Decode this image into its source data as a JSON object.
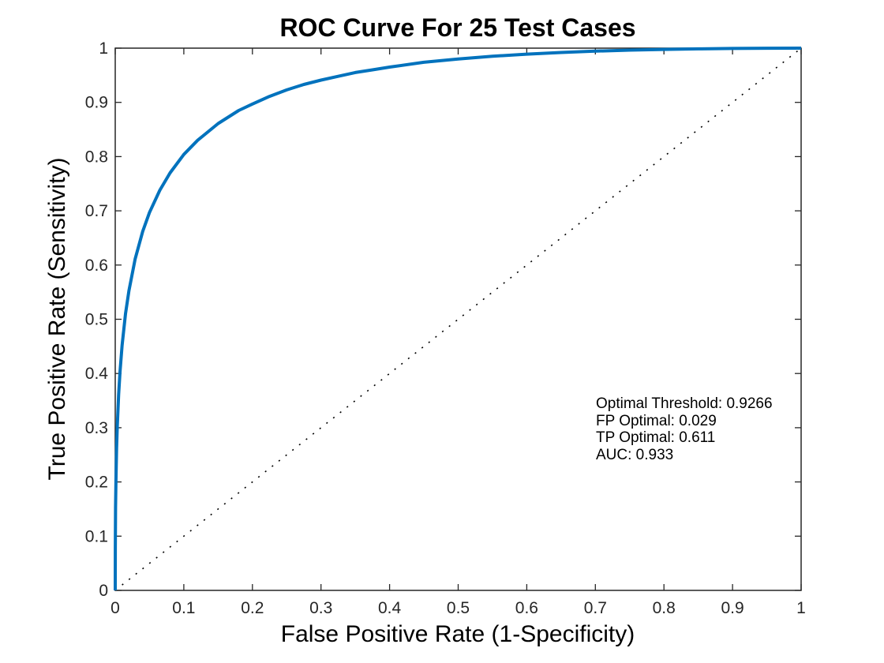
{
  "chart_data": {
    "type": "line",
    "title": "ROC Curve For 25 Test Cases",
    "xlabel": "False Positive Rate (1-Specificity)",
    "ylabel": "True Positive Rate (Sensitivity)",
    "xlim": [
      0,
      1
    ],
    "ylim": [
      0,
      1
    ],
    "xticks": [
      "0",
      "0.1",
      "0.2",
      "0.3",
      "0.4",
      "0.5",
      "0.6",
      "0.7",
      "0.8",
      "0.9",
      "1"
    ],
    "yticks": [
      "0",
      "0.1",
      "0.2",
      "0.3",
      "0.4",
      "0.5",
      "0.6",
      "0.7",
      "0.8",
      "0.9",
      "1"
    ],
    "grid": false,
    "legend_position": "none",
    "series": [
      {
        "name": "roc-curve",
        "color": "#0072BD",
        "width": 4,
        "dash": "solid",
        "points": [
          [
            0,
            0
          ],
          [
            0.0001,
            0.077
          ],
          [
            0.0003,
            0.127
          ],
          [
            0.0005,
            0.153
          ],
          [
            0.001,
            0.202
          ],
          [
            0.002,
            0.262
          ],
          [
            0.003,
            0.303
          ],
          [
            0.005,
            0.361
          ],
          [
            0.007,
            0.404
          ],
          [
            0.01,
            0.452
          ],
          [
            0.015,
            0.51
          ],
          [
            0.02,
            0.553
          ],
          [
            0.029,
            0.611
          ],
          [
            0.04,
            0.662
          ],
          [
            0.05,
            0.697
          ],
          [
            0.065,
            0.738
          ],
          [
            0.08,
            0.77
          ],
          [
            0.1,
            0.804
          ],
          [
            0.12,
            0.83
          ],
          [
            0.15,
            0.861
          ],
          [
            0.18,
            0.885
          ],
          [
            0.2,
            0.897
          ],
          [
            0.225,
            0.911
          ],
          [
            0.25,
            0.923
          ],
          [
            0.275,
            0.933
          ],
          [
            0.3,
            0.941
          ],
          [
            0.325,
            0.948
          ],
          [
            0.35,
            0.955
          ],
          [
            0.375,
            0.96
          ],
          [
            0.4,
            0.965
          ],
          [
            0.45,
            0.974
          ],
          [
            0.5,
            0.98
          ],
          [
            0.55,
            0.985
          ],
          [
            0.6,
            0.989
          ],
          [
            0.65,
            0.992
          ],
          [
            0.7,
            0.9945
          ],
          [
            0.75,
            0.9964
          ],
          [
            0.8,
            0.9977
          ],
          [
            0.85,
            0.9987
          ],
          [
            0.9,
            0.9994
          ],
          [
            0.95,
            0.9998
          ],
          [
            1.0,
            1.0
          ]
        ]
      },
      {
        "name": "chance-diagonal",
        "color": "#000000",
        "width": 1.6,
        "dash": "dotted",
        "points": [
          [
            0,
            0
          ],
          [
            1,
            1
          ]
        ]
      }
    ],
    "annotations": {
      "lines": [
        "Optimal Threshold: 0.9266",
        "FP Optimal: 0.029",
        "TP Optimal: 0.611",
        "AUC: 0.933"
      ]
    },
    "stats": {
      "optimal_threshold": 0.9266,
      "fp_optimal": 0.029,
      "tp_optimal": 0.611,
      "auc": 0.933
    }
  },
  "colors": {
    "curve": "#0072BD",
    "axis": "#262626",
    "text": "#000000",
    "background": "#ffffff"
  }
}
